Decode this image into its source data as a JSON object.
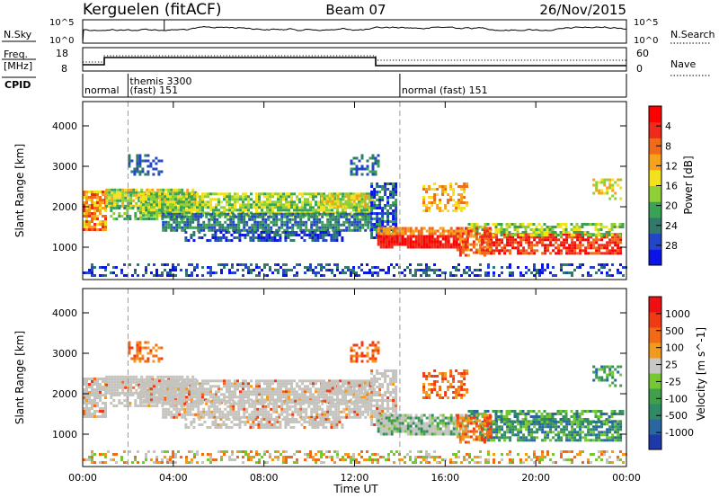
{
  "header": {
    "station": "Kerguelen (fitACF)",
    "beam": "Beam 07",
    "date": "26/Nov/2015"
  },
  "strips": {
    "nsky": {
      "label": "N.Sky",
      "tick_top": "10^5",
      "tick_bottom": "10^0"
    },
    "nsearch": {
      "label": "N.Search",
      "tick_top": "10^5",
      "tick_bottom": "10^0"
    },
    "freq": {
      "label_line1": "Freq.",
      "label_line2": "[MHz]",
      "tick_top": "18",
      "tick_bottom": "8"
    },
    "nave": {
      "label": "Nave",
      "tick_top": "60",
      "tick_bottom": "0"
    },
    "cpid": {
      "label": "CPID",
      "segments": [
        {
          "hour": 0.0,
          "line1": "",
          "line2": "normal"
        },
        {
          "hour": 2.0,
          "line1": "themis 3300",
          "line2": "(fast) 151"
        },
        {
          "hour": 14.0,
          "line1": "",
          "line2": "normal (fast) 151"
        }
      ]
    }
  },
  "chart_data": [
    {
      "type": "heatmap",
      "id": "power",
      "ylabel": "Slant Range [km]",
      "yticks": [
        1000,
        2000,
        3000,
        4000
      ],
      "ylim": [
        200,
        4600
      ],
      "xlim_hours": [
        0,
        24
      ],
      "colorbar": {
        "label": "Power [dB]",
        "ticks": [
          "4",
          "8",
          "12",
          "16",
          "20",
          "24",
          "28"
        ],
        "colors": [
          "#0a14e6",
          "#2346c8",
          "#2f7a6a",
          "#3aa255",
          "#8fcf37",
          "#f2e11c",
          "#f7a21a",
          "#f16a1a",
          "#ee2a1a",
          "#ff0000"
        ]
      }
    },
    {
      "type": "heatmap",
      "id": "velocity",
      "ylabel": "Slant Range [km]",
      "yticks": [
        1000,
        2000,
        3000,
        4000
      ],
      "ylim": [
        200,
        4600
      ],
      "xlim_hours": [
        0,
        24
      ],
      "xticks": [
        "00:00",
        "04:00",
        "08:00",
        "12:00",
        "16:00",
        "20:00",
        "00:00"
      ],
      "xlabel": "Time UT",
      "colorbar": {
        "label": "Velocity [m s^-1]",
        "ticks": [
          "1000",
          "500",
          "100",
          "25",
          "-25",
          "-100",
          "-500",
          "-1000"
        ],
        "colors": [
          "#1f3aa8",
          "#2a66a2",
          "#2f8a66",
          "#3f9f4d",
          "#76c832",
          "#c7c7c3",
          "#f39a1e",
          "#f26a18",
          "#f03a15",
          "#ee0f12"
        ]
      }
    }
  ],
  "palette": {
    "ground_scatter": "#c5c3bd",
    "axis": "#000000",
    "dashed_marker": "#999999"
  }
}
